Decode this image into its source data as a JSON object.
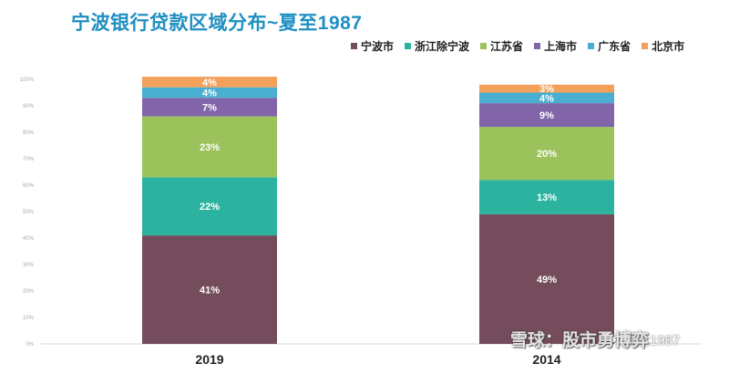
{
  "title": "宁波银行贷款区域分布~夏至1987",
  "legend": [
    {
      "name": "宁波市",
      "color": "#744c5c"
    },
    {
      "name": "浙江除宁波",
      "color": "#2bb3a0"
    },
    {
      "name": "江苏省",
      "color": "#9bc25b"
    },
    {
      "name": "上海市",
      "color": "#8165a8"
    },
    {
      "name": "广东省",
      "color": "#4aaed0"
    },
    {
      "name": "北京市",
      "color": "#f2a05a"
    }
  ],
  "chart_data": {
    "type": "bar",
    "stacked": true,
    "title": "宁波银行贷款区域分布~夏至1987",
    "categories": [
      "2019",
      "2014"
    ],
    "ylim": [
      0,
      100
    ],
    "yticks": [
      "0%",
      "10%",
      "20%",
      "30%",
      "40%",
      "50%",
      "60%",
      "70%",
      "80%",
      "90%",
      "100%"
    ],
    "grid": false,
    "legend_position": "top-right",
    "series": [
      {
        "name": "宁波市",
        "color": "#744c5c",
        "values": [
          41,
          49
        ],
        "labels": [
          "41%",
          "49%"
        ]
      },
      {
        "name": "浙江除宁波",
        "color": "#2bb3a0",
        "values": [
          22,
          13
        ],
        "labels": [
          "22%",
          "13%"
        ]
      },
      {
        "name": "江苏省",
        "color": "#9bc25b",
        "values": [
          23,
          20
        ],
        "labels": [
          "23%",
          "20%"
        ]
      },
      {
        "name": "上海市",
        "color": "#8165a8",
        "values": [
          7,
          9
        ],
        "labels": [
          "7%",
          "9%"
        ]
      },
      {
        "name": "广东省",
        "color": "#4aaed0",
        "values": [
          4,
          4
        ],
        "labels": [
          "4%",
          "4%"
        ]
      },
      {
        "name": "北京市",
        "color": "#f2a05a",
        "values": [
          4,
          3
        ],
        "labels": [
          "4%",
          "3%"
        ]
      }
    ]
  },
  "watermark": {
    "text": "雪球：股市勇博弈",
    "top_text": "夏至1987"
  }
}
